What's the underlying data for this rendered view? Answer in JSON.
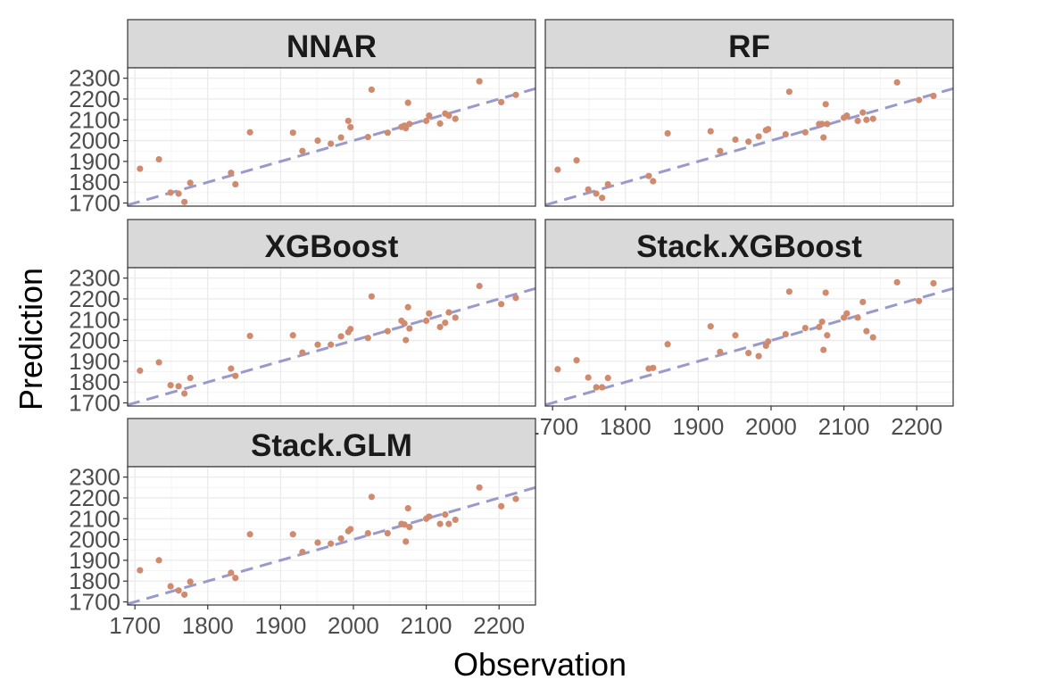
{
  "chart_data": {
    "type": "scatter",
    "xlabel": "Observation",
    "ylabel": "Prediction",
    "xlim": [
      1690,
      2250
    ],
    "ylim": [
      1685,
      2350
    ],
    "xticks": [
      1700,
      1800,
      1900,
      2000,
      2100,
      2200
    ],
    "yticks": [
      1700,
      1800,
      1900,
      2000,
      2100,
      2200,
      2300
    ],
    "xtick_labels": [
      "1700",
      "1800",
      "1900",
      "2000",
      "2100",
      "2200"
    ],
    "ytick_labels": [
      "1700",
      "1800",
      "1900",
      "2000",
      "2100",
      "2200",
      "2300"
    ],
    "reference_line": "y = x (dashed)",
    "grid": true,
    "colors": {
      "points": "#d08a6e",
      "reference_line": "#9999cc",
      "strip": "#d9d9d9",
      "grid": "#ebebeb",
      "text": "#4d4d4d"
    },
    "panels": [
      {
        "title": "NNAR",
        "x": [
          1707,
          1733,
          1749,
          1760,
          1768,
          1776,
          1832,
          1838,
          1858,
          1917,
          1930,
          1951,
          1969,
          1983,
          1993,
          1996,
          2020,
          2025,
          2047,
          2066,
          2070,
          2072,
          2075,
          2077,
          2100,
          2104,
          2119,
          2126,
          2131,
          2140,
          2173,
          2203,
          2223
        ],
        "y": [
          1865,
          1910,
          1750,
          1745,
          1705,
          1797,
          1845,
          1790,
          2040,
          2038,
          1950,
          2000,
          1985,
          2015,
          2095,
          2065,
          2017,
          2245,
          2038,
          2066,
          2072,
          2060,
          2182,
          2080,
          2095,
          2120,
          2082,
          2130,
          2120,
          2105,
          2285,
          2185,
          2220
        ]
      },
      {
        "title": "RF",
        "x": [
          1707,
          1733,
          1749,
          1760,
          1768,
          1776,
          1832,
          1838,
          1858,
          1917,
          1930,
          1951,
          1969,
          1983,
          1993,
          1996,
          2020,
          2025,
          2047,
          2066,
          2070,
          2072,
          2075,
          2077,
          2100,
          2104,
          2119,
          2126,
          2131,
          2140,
          2173,
          2203,
          2223
        ],
        "y": [
          1860,
          1905,
          1765,
          1745,
          1725,
          1790,
          1830,
          1805,
          2035,
          2045,
          1950,
          2005,
          1995,
          2020,
          2050,
          2055,
          2030,
          2235,
          2040,
          2080,
          2080,
          2015,
          2175,
          2080,
          2110,
          2120,
          2095,
          2135,
          2100,
          2105,
          2280,
          2195,
          2215
        ]
      },
      {
        "title": "XGBoost",
        "x": [
          1707,
          1733,
          1749,
          1760,
          1768,
          1776,
          1832,
          1838,
          1858,
          1917,
          1930,
          1951,
          1969,
          1983,
          1993,
          1996,
          2020,
          2025,
          2047,
          2066,
          2070,
          2072,
          2075,
          2077,
          2100,
          2104,
          2119,
          2126,
          2131,
          2140,
          2173,
          2203,
          2223
        ],
        "y": [
          1855,
          1895,
          1785,
          1780,
          1745,
          1820,
          1865,
          1830,
          2022,
          2025,
          1942,
          1980,
          1980,
          2020,
          2040,
          2055,
          2012,
          2212,
          2045,
          2095,
          2082,
          2002,
          2160,
          2058,
          2095,
          2130,
          2065,
          2085,
          2135,
          2110,
          2262,
          2175,
          2205
        ]
      },
      {
        "title": "Stack.XGBoost",
        "x": [
          1707,
          1733,
          1749,
          1760,
          1768,
          1776,
          1832,
          1838,
          1858,
          1917,
          1930,
          1951,
          1969,
          1983,
          1993,
          1996,
          2020,
          2025,
          2047,
          2066,
          2070,
          2072,
          2075,
          2077,
          2100,
          2104,
          2119,
          2126,
          2131,
          2140,
          2173,
          2203,
          2223
        ],
        "y": [
          1862,
          1905,
          1822,
          1775,
          1775,
          1820,
          1865,
          1868,
          1982,
          2068,
          1945,
          2025,
          1940,
          1925,
          1975,
          1995,
          2030,
          2235,
          2060,
          2065,
          2090,
          1955,
          2230,
          2025,
          2110,
          2130,
          2110,
          2185,
          2045,
          2015,
          2280,
          2190,
          2275
        ]
      },
      {
        "title": "Stack.GLM",
        "x": [
          1707,
          1733,
          1749,
          1760,
          1768,
          1776,
          1832,
          1838,
          1858,
          1917,
          1930,
          1951,
          1969,
          1983,
          1993,
          1996,
          2020,
          2025,
          2047,
          2066,
          2070,
          2072,
          2075,
          2077,
          2100,
          2104,
          2119,
          2126,
          2131,
          2140,
          2173,
          2203,
          2223
        ],
        "y": [
          1852,
          1900,
          1775,
          1755,
          1735,
          1797,
          1840,
          1815,
          2025,
          2025,
          1940,
          1985,
          1980,
          2005,
          2040,
          2050,
          2030,
          2205,
          2030,
          2075,
          2072,
          1990,
          2150,
          2060,
          2100,
          2110,
          2075,
          2120,
          2075,
          2095,
          2250,
          2160,
          2195
        ]
      }
    ]
  }
}
